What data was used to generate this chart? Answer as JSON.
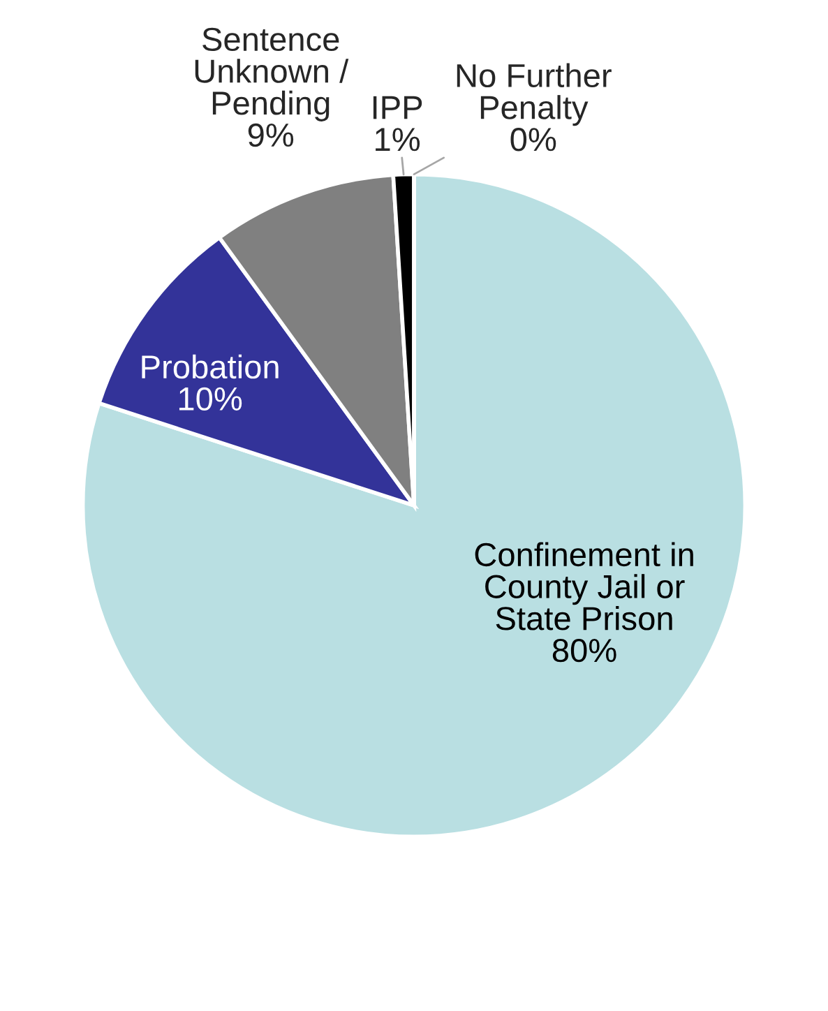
{
  "chart_data": {
    "type": "pie",
    "categories": [
      "Confinement in\nCounty Jail or\nState Prison",
      "Probation",
      "Sentence\nUnknown /\nPending",
      "IPP",
      "No Further\nPenalty"
    ],
    "values": [
      80,
      10,
      9,
      1,
      0
    ],
    "colors": [
      "#b9dfe2",
      "#333399",
      "#808080",
      "#000000",
      "#ffffff"
    ],
    "value_labels": [
      "80%",
      "10%",
      "9%",
      "1%",
      "0%"
    ]
  }
}
